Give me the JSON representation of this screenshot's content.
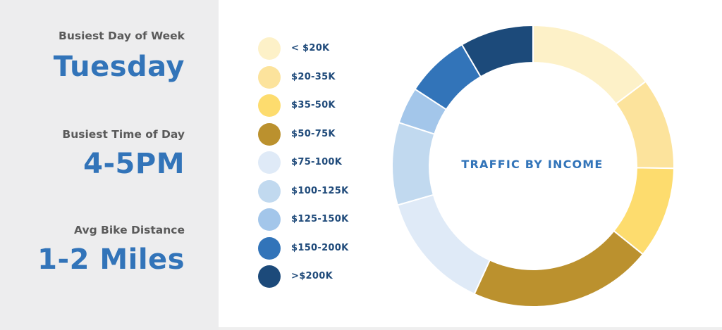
{
  "stats": [
    {
      "label": "Busiest Day of Week",
      "value": "Tuesday"
    },
    {
      "label": "Busiest Time of Day",
      "value": "4-5PM"
    },
    {
      "label": "Avg Bike Distance",
      "value": "1-2 Miles"
    }
  ],
  "chart_data": {
    "type": "pie",
    "variant": "donut",
    "title": "TRAFFIC BY INCOME",
    "legend_position": "left",
    "categories": [
      "< $20K",
      "$20-35K",
      "$35-50K",
      "$50-75K",
      "$75-100K",
      "$100-125K",
      "$125-150K",
      "$150-200K",
      ">$200K"
    ],
    "values": [
      14,
      10,
      10,
      20,
      13,
      9,
      4,
      7,
      8
    ],
    "colors": [
      "#fdf1c8",
      "#fce39c",
      "#fddc6e",
      "#bb912e",
      "#dfeaf7",
      "#c1d9ef",
      "#a3c6ea",
      "#3274b9",
      "#1c4a7a"
    ]
  }
}
